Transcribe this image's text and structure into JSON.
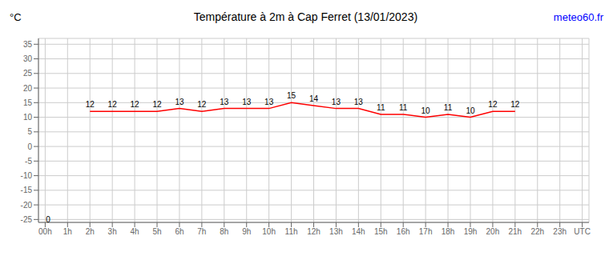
{
  "chart_data": {
    "type": "line",
    "title": "Température à 2m à Cap Ferret (13/01/2023)",
    "ylabel": "°C",
    "x": [
      2,
      3,
      4,
      5,
      6,
      7,
      8,
      9,
      10,
      11,
      12,
      13,
      14,
      15,
      16,
      17,
      18,
      19,
      20,
      21
    ],
    "values": [
      12,
      12,
      12,
      12,
      13,
      12,
      13,
      13,
      13,
      15,
      14,
      13,
      13,
      11,
      11,
      10,
      11,
      10,
      12,
      12
    ],
    "color": "#ff0000",
    "xlim": [
      -0.3,
      24.3
    ],
    "xticks": [
      {
        "value": 0,
        "label": "00h"
      },
      {
        "value": 1,
        "label": "1h"
      },
      {
        "value": 2,
        "label": "2h"
      },
      {
        "value": 3,
        "label": "3h"
      },
      {
        "value": 4,
        "label": "4h"
      },
      {
        "value": 5,
        "label": "5h"
      },
      {
        "value": 6,
        "label": "6h"
      },
      {
        "value": 7,
        "label": "7h"
      },
      {
        "value": 8,
        "label": "8h"
      },
      {
        "value": 9,
        "label": "9h"
      },
      {
        "value": 10,
        "label": "10h"
      },
      {
        "value": 11,
        "label": "11h"
      },
      {
        "value": 12,
        "label": "12h"
      },
      {
        "value": 13,
        "label": "13h"
      },
      {
        "value": 14,
        "label": "14h"
      },
      {
        "value": 15,
        "label": "15h"
      },
      {
        "value": 16,
        "label": "16h"
      },
      {
        "value": 17,
        "label": "17h"
      },
      {
        "value": 18,
        "label": "18h"
      },
      {
        "value": 19,
        "label": "19h"
      },
      {
        "value": 20,
        "label": "20h"
      },
      {
        "value": 21,
        "label": "21h"
      },
      {
        "value": 22,
        "label": "22h"
      },
      {
        "value": 23,
        "label": "23h"
      },
      {
        "value": 24,
        "label": "UTC"
      }
    ],
    "ylim": [
      -26,
      37
    ],
    "yticks": [
      -25,
      -20,
      -15,
      -10,
      -5,
      0,
      5,
      10,
      15,
      20,
      25,
      30,
      35
    ],
    "grid": true,
    "data_labels": true,
    "annotations": [
      {
        "text": "meteo60.fr",
        "color": "blue"
      },
      {
        "text": "0",
        "x": -0.15,
        "y": -25
      }
    ]
  }
}
